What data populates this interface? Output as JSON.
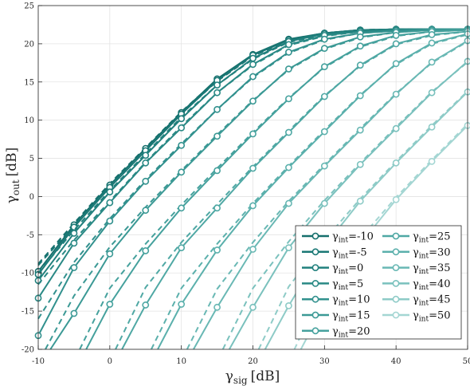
{
  "chart_data": {
    "type": "line",
    "xlabel": {
      "symbol": "γ",
      "sub": "sig",
      "unit": "[dB]"
    },
    "ylabel": {
      "symbol": "γ",
      "sub": "out",
      "unit": "[dB]"
    },
    "xlim": [
      -10,
      50
    ],
    "ylim": [
      -20,
      25
    ],
    "xticks": [
      -10,
      0,
      10,
      20,
      30,
      40,
      50
    ],
    "yticks": [
      -20,
      -15,
      -10,
      -5,
      0,
      5,
      10,
      15,
      20,
      25
    ],
    "grid": true,
    "legend": {
      "position": "bottom-right",
      "columns": 2
    },
    "series": [
      {
        "label": "=-10",
        "sym": "γ",
        "sub": "int",
        "color": "#156f6c",
        "x": [
          -10,
          -5,
          0,
          5,
          10,
          15,
          20,
          25,
          30,
          35,
          40,
          45,
          50
        ],
        "y": [
          -9.8,
          -3.7,
          1.5,
          6.3,
          11.0,
          15.4,
          18.6,
          20.6,
          21.4,
          21.8,
          21.9,
          21.9,
          21.9
        ],
        "dashed": {
          "x": [
            -10,
            -5,
            0,
            5,
            10,
            15,
            20,
            25,
            30,
            35,
            40,
            45,
            50
          ],
          "y": [
            -8.8,
            -3.5,
            1.7,
            6.4,
            11.1,
            15.3,
            18.5,
            20.5,
            21.4,
            21.8,
            21.9,
            21.9,
            21.9
          ]
        }
      },
      {
        "label": "=-5",
        "sym": "γ",
        "sub": "int",
        "color": "#1a7875",
        "x": [
          -10,
          -5,
          0,
          5,
          10,
          15,
          20,
          25,
          30,
          35,
          40,
          45,
          50
        ],
        "y": [
          -10.2,
          -4.0,
          1.2,
          6.0,
          10.8,
          15.2,
          18.5,
          20.5,
          21.4,
          21.8,
          21.9,
          21.9,
          21.9
        ],
        "dashed": {
          "x": [
            -10,
            -5,
            0,
            5,
            10,
            15,
            20,
            25,
            30,
            35,
            40,
            45,
            50
          ],
          "y": [
            -9.0,
            -3.8,
            1.4,
            6.1,
            10.9,
            15.1,
            18.4,
            20.4,
            21.3,
            21.8,
            21.9,
            21.9,
            21.9
          ]
        }
      },
      {
        "label": "=0",
        "sym": "γ",
        "sub": "int",
        "color": "#21807d",
        "x": [
          -10,
          -5,
          0,
          5,
          10,
          15,
          20,
          25,
          30,
          35,
          40,
          45,
          50
        ],
        "y": [
          -11.0,
          -4.8,
          0.6,
          5.4,
          10.2,
          14.6,
          18.1,
          20.3,
          21.3,
          21.7,
          21.9,
          21.9,
          21.9
        ],
        "dashed": {
          "x": [
            -10,
            -5,
            0,
            5,
            10,
            15,
            20,
            25,
            30,
            35,
            40,
            45,
            50
          ],
          "y": [
            -10.0,
            -4.4,
            0.8,
            5.6,
            10.4,
            14.6,
            18.0,
            20.2,
            21.2,
            21.7,
            21.9,
            21.9,
            21.9
          ]
        }
      },
      {
        "label": "=5",
        "sym": "γ",
        "sub": "int",
        "color": "#298985",
        "x": [
          -10,
          -5,
          0,
          5,
          10,
          15,
          20,
          25,
          30,
          35,
          40,
          45,
          50
        ],
        "y": [
          -13.3,
          -6.1,
          -0.8,
          4.4,
          9.0,
          13.6,
          17.3,
          19.9,
          21.1,
          21.6,
          21.8,
          21.9,
          21.9
        ],
        "dashed": {
          "x": [
            -10,
            -5,
            0,
            5,
            10,
            15,
            20,
            25,
            30,
            35,
            40,
            45,
            50
          ],
          "y": [
            -11.5,
            -5.7,
            -0.6,
            4.5,
            9.2,
            13.6,
            17.2,
            19.8,
            21.0,
            21.6,
            21.8,
            21.9,
            21.9
          ]
        }
      },
      {
        "label": "=10",
        "sym": "γ",
        "sub": "int",
        "color": "#32918e",
        "x": [
          -10,
          -5,
          0,
          5,
          10,
          15,
          20,
          25,
          30,
          35,
          40,
          45,
          50
        ],
        "y": [
          -18.2,
          -9.3,
          -3.2,
          2.0,
          6.7,
          11.4,
          15.7,
          18.9,
          20.6,
          21.4,
          21.7,
          21.9,
          21.9
        ],
        "dashed": {
          "x": [
            -10,
            -5,
            0,
            5,
            10,
            15,
            20,
            25,
            30,
            35,
            40,
            45,
            50
          ],
          "y": [
            -16.0,
            -8.6,
            -2.9,
            2.2,
            6.9,
            11.4,
            15.6,
            18.8,
            20.5,
            21.4,
            21.7,
            21.9,
            21.9
          ]
        }
      },
      {
        "label": "=15",
        "sym": "γ",
        "sub": "int",
        "color": "#3b9995",
        "x": [
          -8.3,
          -5,
          0,
          5,
          10,
          15,
          20,
          25,
          30,
          35,
          40,
          45,
          50
        ],
        "y": [
          -20,
          -15.3,
          -7.5,
          -1.8,
          3.2,
          7.9,
          12.5,
          16.7,
          19.4,
          20.9,
          21.5,
          21.8,
          21.9
        ],
        "dashed": {
          "x": [
            -9.0,
            -5,
            0,
            5,
            10,
            15,
            20,
            25,
            30,
            35,
            40,
            45,
            50
          ],
          "y": [
            -20,
            -13.0,
            -6.6,
            -1.4,
            3.4,
            8.1,
            12.6,
            16.6,
            19.3,
            20.8,
            21.5,
            21.8,
            21.9
          ]
        }
      },
      {
        "label": "=20",
        "sym": "γ",
        "sub": "int",
        "color": "#45a19d",
        "x": [
          -3.3,
          0,
          5,
          10,
          15,
          20,
          25,
          30,
          35,
          40,
          45,
          50
        ],
        "y": [
          -20,
          -14.1,
          -7.1,
          -1.5,
          3.4,
          8.2,
          12.8,
          17.0,
          19.7,
          21.1,
          21.6,
          21.8
        ],
        "dashed": {
          "x": [
            -4.2,
            0,
            5,
            10,
            15,
            20,
            25,
            30,
            35,
            40,
            45,
            50
          ],
          "y": [
            -20,
            -12.0,
            -6.2,
            -1.1,
            3.7,
            8.4,
            12.9,
            16.9,
            19.6,
            21.0,
            21.6,
            21.8
          ]
        }
      },
      {
        "label": "=25",
        "sym": "γ",
        "sub": "int",
        "color": "#4fa8a4",
        "x": [
          1.7,
          5,
          10,
          15,
          20,
          25,
          30,
          35,
          40,
          45,
          50
        ],
        "y": [
          -20,
          -14.2,
          -6.7,
          -1.5,
          3.7,
          8.4,
          13.1,
          17.2,
          20.0,
          21.2,
          21.6
        ],
        "dashed": {
          "x": [
            0.8,
            5,
            10,
            15,
            20,
            25,
            30,
            35,
            40,
            45,
            50
          ],
          "y": [
            -20,
            -11.9,
            -6.0,
            -1.0,
            3.9,
            8.6,
            13.2,
            17.1,
            19.9,
            21.1,
            21.6
          ]
        }
      },
      {
        "label": "=30",
        "sym": "γ",
        "sub": "int",
        "color": "#5bb0ac",
        "x": [
          6.7,
          10,
          15,
          20,
          25,
          30,
          35,
          40,
          45,
          50
        ],
        "y": [
          -20,
          -14.1,
          -7.0,
          -1.2,
          3.8,
          8.5,
          13.2,
          17.4,
          20.1,
          21.3
        ],
        "dashed": {
          "x": [
            5.8,
            10,
            15,
            20,
            25,
            30,
            35,
            40,
            45,
            50
          ],
          "y": [
            -20,
            -12.0,
            -6.2,
            -0.9,
            4.0,
            8.7,
            13.3,
            17.3,
            20.0,
            21.2
          ]
        }
      },
      {
        "label": "=35",
        "sym": "γ",
        "sub": "int",
        "color": "#69b8b4",
        "x": [
          11.7,
          15,
          20,
          25,
          30,
          35,
          40,
          45,
          50
        ],
        "y": [
          -20,
          -14.5,
          -6.9,
          -0.9,
          4.0,
          8.7,
          13.4,
          17.6,
          20.4
        ],
        "dashed": {
          "x": [
            10.8,
            15,
            20,
            25,
            30,
            35,
            40,
            45,
            50
          ],
          "y": [
            -20,
            -12.1,
            -6.0,
            -0.6,
            4.2,
            8.9,
            13.5,
            17.5,
            20.3
          ]
        }
      },
      {
        "label": "=40",
        "sym": "γ",
        "sub": "int",
        "color": "#7ac1bd",
        "x": [
          16.7,
          20,
          25,
          30,
          35,
          40,
          45,
          50
        ],
        "y": [
          -20,
          -14.5,
          -6.7,
          -0.9,
          4.2,
          8.9,
          13.6,
          17.7
        ],
        "dashed": {
          "x": [
            15.8,
            20,
            25,
            30,
            35,
            40,
            45,
            50
          ],
          "y": [
            -20,
            -12.0,
            -5.9,
            -0.5,
            4.4,
            9.1,
            13.7,
            17.6
          ]
        }
      },
      {
        "label": "=45",
        "sym": "γ",
        "sub": "int",
        "color": "#8ecbc7",
        "x": [
          21.7,
          25,
          30,
          35,
          40,
          45,
          50
        ],
        "y": [
          -20,
          -14.3,
          -6.5,
          -0.6,
          4.4,
          9.1,
          13.7
        ],
        "dashed": {
          "x": [
            20.8,
            25,
            30,
            35,
            40,
            45,
            50
          ],
          "y": [
            -20,
            -11.8,
            -5.7,
            -0.3,
            4.6,
            9.3,
            13.8
          ]
        }
      },
      {
        "label": "=50",
        "sym": "γ",
        "sub": "int",
        "color": "#a4d6d3",
        "x": [
          26.7,
          30,
          35,
          40,
          45,
          50
        ],
        "y": [
          -20,
          -14.1,
          -6.2,
          -0.4,
          4.6,
          9.3
        ],
        "dashed": {
          "x": [
            25.8,
            30,
            35,
            40,
            45,
            50
          ],
          "y": [
            -20,
            -11.6,
            -5.5,
            -0.1,
            4.8,
            9.5
          ]
        }
      }
    ]
  }
}
